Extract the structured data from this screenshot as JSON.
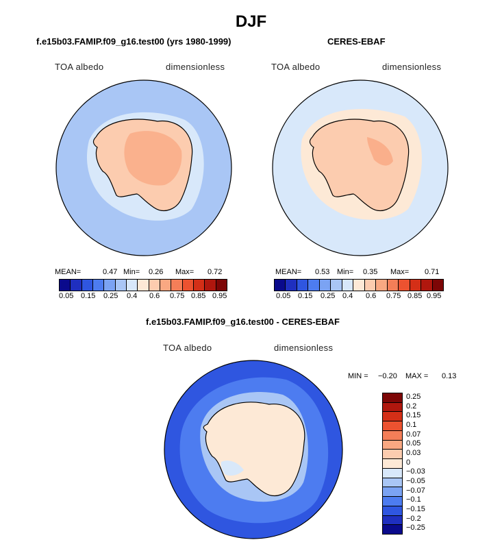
{
  "page": {
    "title": "DJF"
  },
  "panels": [
    {
      "id": "model",
      "title": "f.e15b03.FAMIP.f09_g16.test00 (yrs 1980-1999)",
      "left_label": "TOA albedo",
      "right_label": "dimensionless",
      "stats": {
        "mean_label": "MEAN=",
        "mean": "0.47",
        "min_label": "Min=",
        "min": "0.26",
        "max_label": "Max=",
        "max": "0.72"
      }
    },
    {
      "id": "obs",
      "title": "CERES-EBAF",
      "left_label": "TOA albedo",
      "right_label": "dimensionless",
      "stats": {
        "mean_label": "MEAN=",
        "mean": "0.53",
        "min_label": "Min=",
        "min": "0.35",
        "max_label": "Max=",
        "max": "0.71"
      }
    },
    {
      "id": "diff",
      "title": "f.e15b03.FAMIP.f09_g16.test00 - CERES-EBAF",
      "left_label": "TOA albedo",
      "right_label": "dimensionless",
      "stats": {
        "min_label": "MIN =",
        "min": "−0.20",
        "max_label": "MAX =",
        "max": "0.13"
      }
    }
  ],
  "colorbar_top": {
    "colors": [
      "#0a0a8c",
      "#1f2fbf",
      "#2f56e0",
      "#4d7cf0",
      "#7ba3f3",
      "#a9c6f5",
      "#d8e8fa",
      "#fde9d6",
      "#fcccaf",
      "#f9a882",
      "#f47e58",
      "#ec5230",
      "#d42f17",
      "#b0170e",
      "#7d0606"
    ],
    "tick_labels": [
      "0.05",
      "0.15",
      "0.25",
      "0.4",
      "0.6",
      "0.75",
      "0.85",
      "0.95"
    ]
  },
  "colorbar_diff": {
    "colors": [
      "#7d0606",
      "#b0170e",
      "#d42f17",
      "#ec5230",
      "#f47e58",
      "#f9a882",
      "#fcccaf",
      "#fde9d6",
      "#d8e8fa",
      "#a9c6f5",
      "#7ba3f3",
      "#4d7cf0",
      "#2f56e0",
      "#1f2fbf",
      "#0a0a8c"
    ],
    "tick_labels": [
      "0.25",
      "0.2",
      "0.15",
      "0.1",
      "0.07",
      "0.05",
      "0.03",
      "0",
      "−0.03",
      "−0.05",
      "−0.07",
      "−0.1",
      "−0.15",
      "−0.2",
      "−0.25"
    ]
  },
  "map_colors": {
    "model_ocean": "#a9c6f5",
    "model_ice": "#d8e8fa",
    "model_land": "#fcccaf",
    "model_land_high": "#f9a882",
    "obs_ocean": "#d8e8fa",
    "obs_seaice": "#fde9d6",
    "obs_land": "#fcccaf",
    "obs_land_high": "#f9a882",
    "diff_ocean": "#2f56e0",
    "diff_ocean_mid": "#4d7cf0",
    "diff_ice": "#a9c6f5",
    "diff_land": "#fde9d6",
    "diff_coast": "#d8e8fa",
    "coastline": "#000000"
  }
}
